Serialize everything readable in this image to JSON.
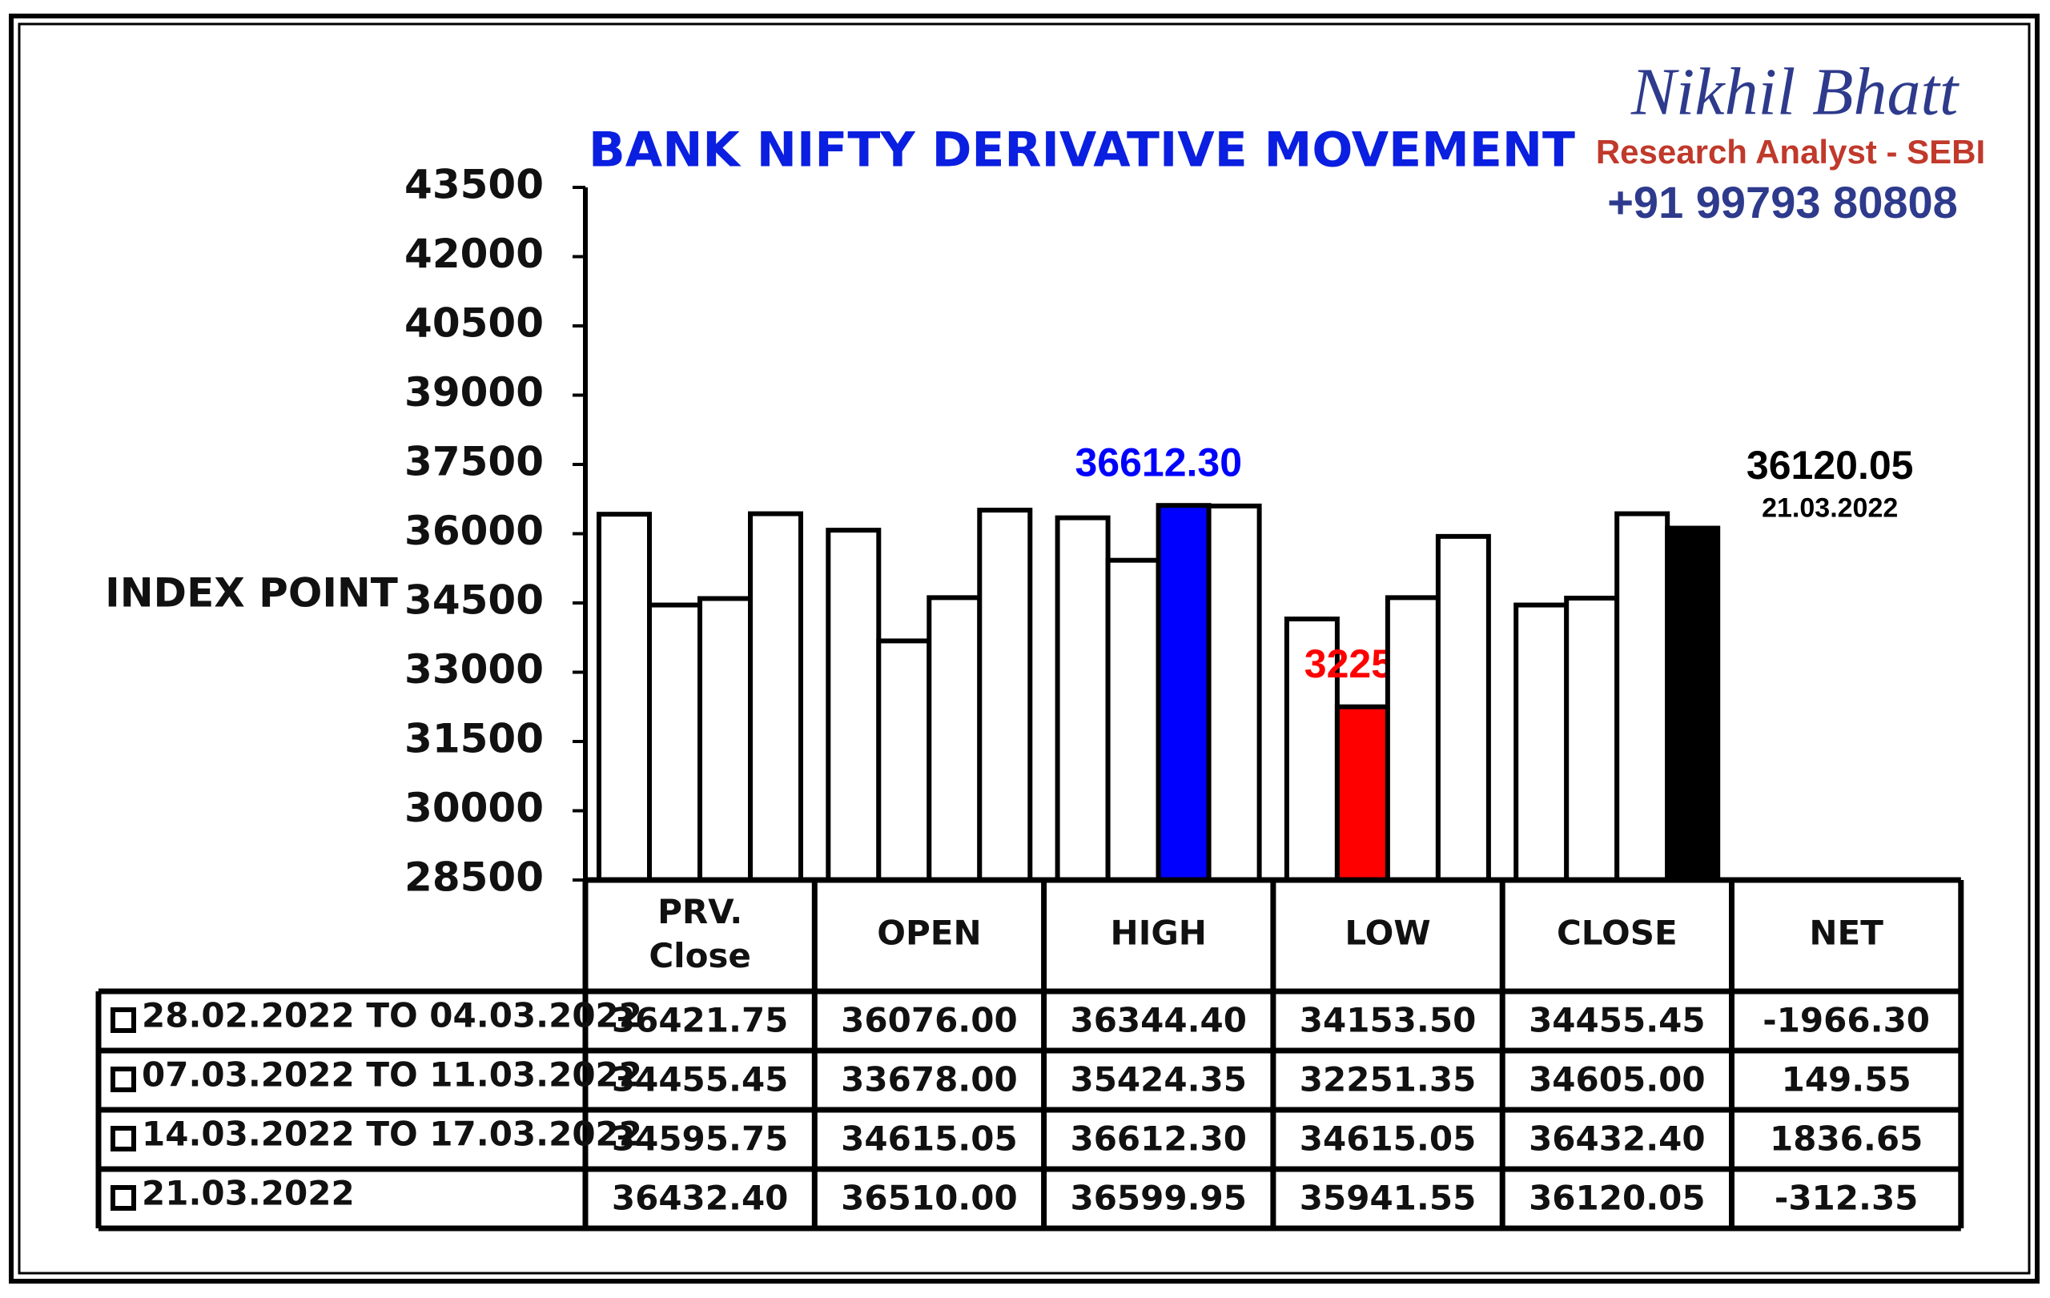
{
  "chart_data": {
    "type": "bar",
    "title": "BANK NIFTY DERIVATIVE MOVEMENT",
    "y_label": "INDEX POINT",
    "categories": [
      "PRV. Close",
      "OPEN",
      "HIGH",
      "LOW",
      "CLOSE"
    ],
    "ylim": [
      28500,
      43500
    ],
    "yticks": [
      28500,
      30000,
      31500,
      33000,
      34500,
      36000,
      37500,
      39000,
      40500,
      42000,
      43500
    ],
    "series": [
      {
        "name": "28.02.2022 TO 04.03.2022",
        "values": [
          36421.75,
          36076,
          36344.4,
          34153.5,
          34455.45
        ],
        "value_labels": [
          "36421.75",
          "36076.00",
          "36344.40",
          "34153.50",
          "34455.45"
        ],
        "colors": [
          "#ffffff",
          "#ffffff",
          "#ffffff",
          "#ffffff",
          "#ffffff"
        ]
      },
      {
        "name": "07.03.2022 TO 11.03.2022",
        "values": [
          34455.45,
          33678,
          35424.35,
          32251.35,
          34605
        ],
        "value_labels": [
          "34455.45",
          "33678.00",
          "35424.35",
          "32251.35",
          "34605.00"
        ],
        "colors": [
          "#ffffff",
          "#ffffff",
          "#ffffff",
          "#ff0000",
          "#ffffff"
        ]
      },
      {
        "name": "14.03.2022 TO 17.03.2022",
        "values": [
          34595.75,
          34615.05,
          36612.3,
          34615.05,
          36432.4
        ],
        "value_labels": [
          "34595.75",
          "34615.05",
          "36612.30",
          "34615.05",
          "36432.40"
        ],
        "colors": [
          "#ffffff",
          "#ffffff",
          "#0000ff",
          "#ffffff",
          "#ffffff"
        ]
      },
      {
        "name": "21.03.2022",
        "values": [
          36432.4,
          36510,
          36599.95,
          35941.55,
          36120.05
        ],
        "value_labels": [
          "36432.40",
          "36510.00",
          "36599.95",
          "35941.55",
          "36120.05"
        ],
        "colors": [
          "#ffffff",
          "#ffffff",
          "#ffffff",
          "#ffffff",
          "#000000"
        ],
        "annotation_shows_name": true
      }
    ],
    "net_label": "NET",
    "net_values": [
      -1966.3,
      149.55,
      1836.65,
      -312.35
    ],
    "net_value_labels": [
      "-1966.30",
      "149.55",
      "1836.65",
      "-312.35"
    ]
  },
  "branding": {
    "name": "Nikhil Bhatt",
    "role": "Research Analyst - SEBI",
    "phone": "+91 99793 80808"
  }
}
